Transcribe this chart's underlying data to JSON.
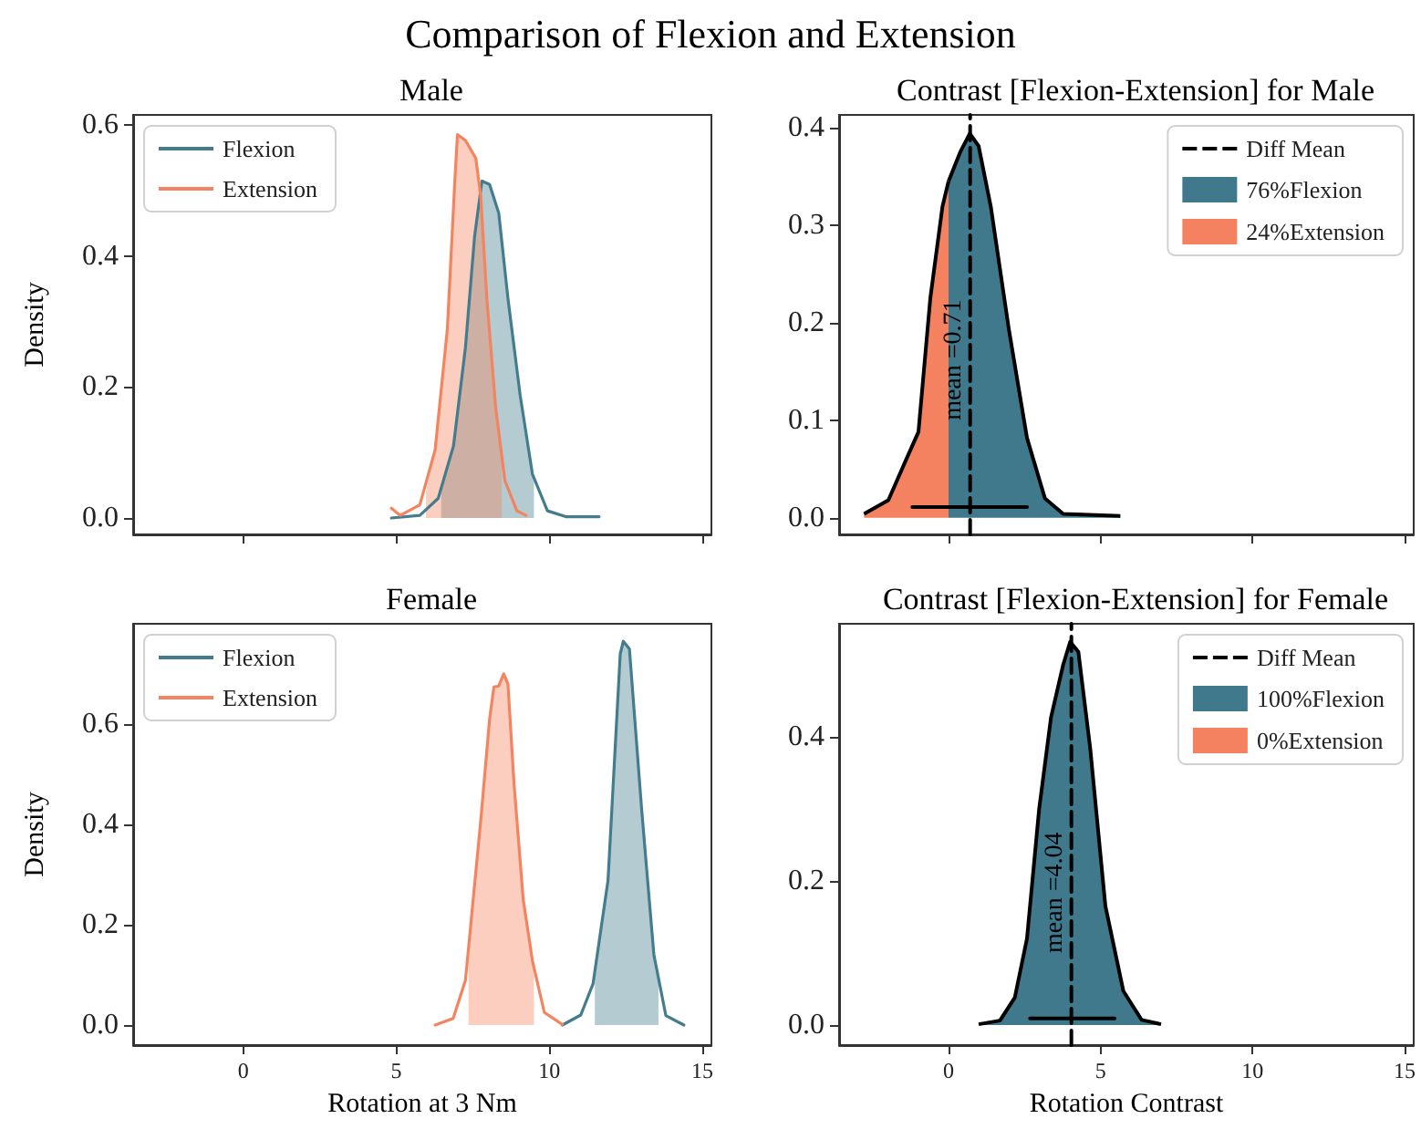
{
  "chart_data": [
    {
      "type": "line",
      "title": "Comparison of Flexion and Extension",
      "subtitle": "Male",
      "ylabel": "Density",
      "xlim": [
        -3.6,
        15.3
      ],
      "xticks": [
        0,
        5,
        10,
        15
      ],
      "ylim": [
        -0.025,
        0.615
      ],
      "yticks": [
        {
          "value": 0,
          "label": "0.0"
        },
        {
          "value": 0.2,
          "label": "0.2"
        },
        {
          "value": 0.4,
          "label": "0.4"
        },
        {
          "value": 0.6,
          "label": "0.6"
        }
      ],
      "tick_labels": "y",
      "legend": "top left",
      "series": [
        {
          "name": "Flexion",
          "color": "#437c8d",
          "x": [
            4.84,
            5.77,
            6.37,
            6.87,
            7.26,
            7.56,
            7.8,
            8.05,
            8.35,
            8.65,
            9.05,
            9.45,
            9.94,
            10.54,
            11.63
          ],
          "values": [
            0,
            0.004,
            0.03,
            0.11,
            0.26,
            0.43,
            0.514,
            0.509,
            0.465,
            0.335,
            0.187,
            0.067,
            0.011,
            0.002,
            0.002
          ]
        },
        {
          "name": "Extension",
          "color": "#f4845f",
          "x": [
            4.84,
            5.13,
            5.77,
            6.27,
            6.67,
            6.92,
            7.0,
            7.26,
            7.6,
            7.76,
            7.96,
            8.25,
            8.55,
            8.94,
            9.24
          ],
          "values": [
            0.015,
            0.004,
            0.02,
            0.104,
            0.289,
            0.52,
            0.585,
            0.576,
            0.549,
            0.491,
            0.335,
            0.168,
            0.057,
            0.011,
            0.004
          ]
        },
        {
          "type": "area",
          "color": "#437c8d",
          "x": [
            6.47,
            6.87,
            7.26,
            7.56,
            7.8,
            8.05,
            8.35,
            8.65,
            9.05,
            9.45,
            9.5
          ],
          "values": [
            0.05,
            0.11,
            0.26,
            0.43,
            0.514,
            0.509,
            0.465,
            0.335,
            0.187,
            0.067,
            0.06
          ]
        },
        {
          "type": "area",
          "color": "#f4845f",
          "x": [
            5.97,
            6.27,
            6.67,
            6.92,
            7.0,
            7.26,
            7.6,
            7.76,
            7.96,
            8.25,
            8.45
          ],
          "values": [
            0.04,
            0.104,
            0.289,
            0.52,
            0.585,
            0.576,
            0.549,
            0.491,
            0.335,
            0.168,
            0.08
          ]
        }
      ]
    },
    {
      "type": "area",
      "title": "Contrast [Flexion-Extension] for Male",
      "xlim": [
        -3.6,
        15.3
      ],
      "xticks": [
        0,
        5,
        10,
        15
      ],
      "ylim": [
        -0.017,
        0.413
      ],
      "yticks": [
        {
          "value": 0,
          "label": "0.0"
        },
        {
          "value": 0.1,
          "label": "0.1"
        },
        {
          "value": 0.2,
          "label": "0.2"
        },
        {
          "value": 0.3,
          "label": "0.3"
        },
        {
          "value": 0.4,
          "label": "0.4"
        }
      ],
      "tick_labels": "y",
      "legend": "top right",
      "annotations": [
        {
          "text": "mean =0.71",
          "x": 0.71,
          "y": 0.1
        }
      ],
      "series": [
        {
          "name": "Diff Mean",
          "type": "line",
          "line_style": "dashed",
          "color": "#000000",
          "x": [
            0.71,
            0.71
          ],
          "values": [
            -0.017,
            0.413
          ]
        },
        {
          "name": "76%Flexion",
          "color": "#40798c",
          "x": [
            0,
            0.4,
            0.7,
            0.99,
            1.39,
            1.98,
            2.58,
            3.17,
            3.77,
            5.65
          ],
          "values": [
            0.345,
            0.376,
            0.394,
            0.381,
            0.319,
            0.194,
            0.082,
            0.02,
            0.004,
            0.002
          ]
        },
        {
          "name": "24%Extension",
          "color": "#f4815f",
          "x": [
            -2.78,
            -1.98,
            -1.39,
            -0.99,
            -0.6,
            -0.2,
            0
          ],
          "values": [
            0.004,
            0.018,
            0.06,
            0.088,
            0.225,
            0.319,
            0.345
          ]
        },
        {
          "type": "line",
          "color": "#000000",
          "x": [
            -1.19,
            2.58
          ],
          "values": [
            0.011,
            0.011
          ]
        }
      ]
    },
    {
      "type": "line",
      "title": "Female",
      "xlabel": "Rotation at 3 Nm",
      "ylabel": "Density",
      "xlim": [
        -3.6,
        15.3
      ],
      "xticks": [
        0,
        5,
        10,
        15
      ],
      "ylim": [
        -0.04,
        0.8
      ],
      "yticks": [
        {
          "value": 0,
          "label": "0.0"
        },
        {
          "value": 0.2,
          "label": "0.2"
        },
        {
          "value": 0.4,
          "label": "0.4"
        },
        {
          "value": 0.6,
          "label": "0.6"
        }
      ],
      "legend": "top left",
      "series": [
        {
          "name": "Flexion",
          "color": "#437c8d",
          "x": [
            10.43,
            11.03,
            11.43,
            11.92,
            12.32,
            12.42,
            12.62,
            13.02,
            13.42,
            13.81,
            14.4
          ],
          "values": [
            0,
            0.02,
            0.082,
            0.288,
            0.74,
            0.765,
            0.75,
            0.43,
            0.14,
            0.019,
            0
          ]
        },
        {
          "name": "Extension",
          "color": "#f4845f",
          "x": [
            6.27,
            6.86,
            7.26,
            7.76,
            8.05,
            8.19,
            8.35,
            8.51,
            8.65,
            8.85,
            9.15,
            9.45,
            9.84,
            10.43
          ],
          "values": [
            0,
            0.013,
            0.089,
            0.407,
            0.61,
            0.674,
            0.676,
            0.7,
            0.68,
            0.48,
            0.25,
            0.128,
            0.025,
            0.001
          ]
        },
        {
          "type": "area",
          "color": "#437c8d",
          "x": [
            11.49,
            11.92,
            12.32,
            12.42,
            12.62,
            13.02,
            13.42,
            13.57
          ],
          "values": [
            0.11,
            0.288,
            0.74,
            0.765,
            0.75,
            0.43,
            0.14,
            0.09
          ]
        },
        {
          "type": "area",
          "color": "#f4845f",
          "x": [
            7.36,
            7.76,
            8.05,
            8.19,
            8.35,
            8.51,
            8.65,
            8.85,
            9.15,
            9.45,
            9.5
          ],
          "values": [
            0.15,
            0.407,
            0.61,
            0.674,
            0.676,
            0.7,
            0.68,
            0.48,
            0.25,
            0.128,
            0.11
          ]
        }
      ]
    },
    {
      "type": "area",
      "title": "Contrast [Flexion-Extension] for Female",
      "xlabel": "Rotation Contrast",
      "xlim": [
        -3.6,
        15.3
      ],
      "xticks": [
        0,
        5,
        10,
        15
      ],
      "ylim": [
        -0.028,
        0.557
      ],
      "yticks": [
        {
          "value": 0,
          "label": "0.0"
        },
        {
          "value": 0.2,
          "label": "0.2"
        },
        {
          "value": 0.4,
          "label": "0.4"
        }
      ],
      "legend": "top right",
      "annotations": [
        {
          "text": "mean =4.04",
          "x": 4.04,
          "y": 0.1
        }
      ],
      "series": [
        {
          "name": "Diff Mean",
          "type": "line",
          "line_style": "dashed",
          "color": "#000000",
          "x": [
            4.04,
            4.04
          ],
          "values": [
            -0.028,
            0.557
          ]
        },
        {
          "name": "100%Flexion",
          "color": "#40798c",
          "x": [
            0.99,
            1.69,
            2.18,
            2.58,
            2.98,
            3.37,
            3.77,
            4.0,
            4.27,
            4.66,
            5.16,
            5.75,
            6.35,
            6.99
          ],
          "values": [
            0.001,
            0.006,
            0.038,
            0.12,
            0.3,
            0.427,
            0.5,
            0.532,
            0.518,
            0.384,
            0.165,
            0.047,
            0.007,
            0.001
          ]
        },
        {
          "type": "line",
          "color": "#000000",
          "x": [
            2.68,
            5.46
          ],
          "values": [
            0.009,
            0.009
          ]
        },
        {
          "name": "0%Extension",
          "color": "#f4815f"
        }
      ]
    }
  ]
}
